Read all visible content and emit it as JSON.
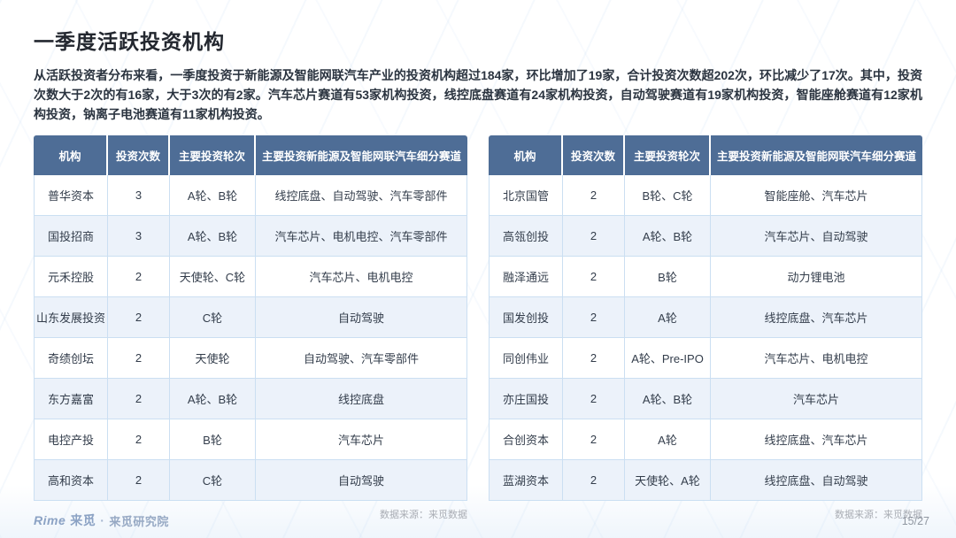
{
  "page": {
    "title": "一季度活跃投资机构",
    "intro": "从活跃投资者分布来看，一季度投资于新能源及智能网联汽车产业的投资机构超过184家，环比增加了19家，合计投资次数超202次，环比减少了17次。其中，投资次数大于2次的有16家，大于3次的有2家。汽车芯片赛道有53家机构投资，线控底盘赛道有24家机构投资，自动驾驶赛道有19家机构投资，智能座舱赛道有12家机构投资，钠离子电池赛道有11家机构投资。",
    "page_number": "15/27"
  },
  "tables": {
    "headers": [
      "机构",
      "投资次数",
      "主要投资轮次",
      "主要投资新能源及智能网联汽车细分赛道"
    ],
    "source_note": "数据来源：来觅数据",
    "left": {
      "rows": [
        [
          "普华资本",
          "3",
          "A轮、B轮",
          "线控底盘、自动驾驶、汽车零部件"
        ],
        [
          "国投招商",
          "3",
          "A轮、B轮",
          "汽车芯片、电机电控、汽车零部件"
        ],
        [
          "元禾控股",
          "2",
          "天使轮、C轮",
          "汽车芯片、电机电控"
        ],
        [
          "山东发展投资",
          "2",
          "C轮",
          "自动驾驶"
        ],
        [
          "奇绩创坛",
          "2",
          "天使轮",
          "自动驾驶、汽车零部件"
        ],
        [
          "东方嘉富",
          "2",
          "A轮、B轮",
          "线控底盘"
        ],
        [
          "电控产投",
          "2",
          "B轮",
          "汽车芯片"
        ],
        [
          "高和资本",
          "2",
          "C轮",
          "自动驾驶"
        ]
      ]
    },
    "right": {
      "rows": [
        [
          "北京国管",
          "2",
          "B轮、C轮",
          "智能座舱、汽车芯片"
        ],
        [
          "高瓴创投",
          "2",
          "A轮、B轮",
          "汽车芯片、自动驾驶"
        ],
        [
          "融泽通远",
          "2",
          "B轮",
          "动力锂电池"
        ],
        [
          "国发创投",
          "2",
          "A轮",
          "线控底盘、汽车芯片"
        ],
        [
          "同创伟业",
          "2",
          "A轮、Pre-IPO",
          "汽车芯片、电机电控"
        ],
        [
          "亦庄国投",
          "2",
          "A轮、B轮",
          "汽车芯片"
        ],
        [
          "合创资本",
          "2",
          "A轮",
          "线控底盘、汽车芯片"
        ],
        [
          "蓝湖资本",
          "2",
          "天使轮、A轮",
          "线控底盘、自动驾驶"
        ]
      ]
    }
  },
  "footer": {
    "logo_rime": "Rime",
    "logo_cn": "来觅",
    "logo_sep": "·",
    "logo_org": "来觅研究院"
  },
  "colors": {
    "header_bg": "#4e6d96",
    "table_border": "#cbdff2",
    "alt_row_bg": "#ecf2fa",
    "body_text": "#333d4b",
    "title_text": "#23272f",
    "muted_text": "#a9adb4",
    "logo_text": "#8ba2c4"
  }
}
